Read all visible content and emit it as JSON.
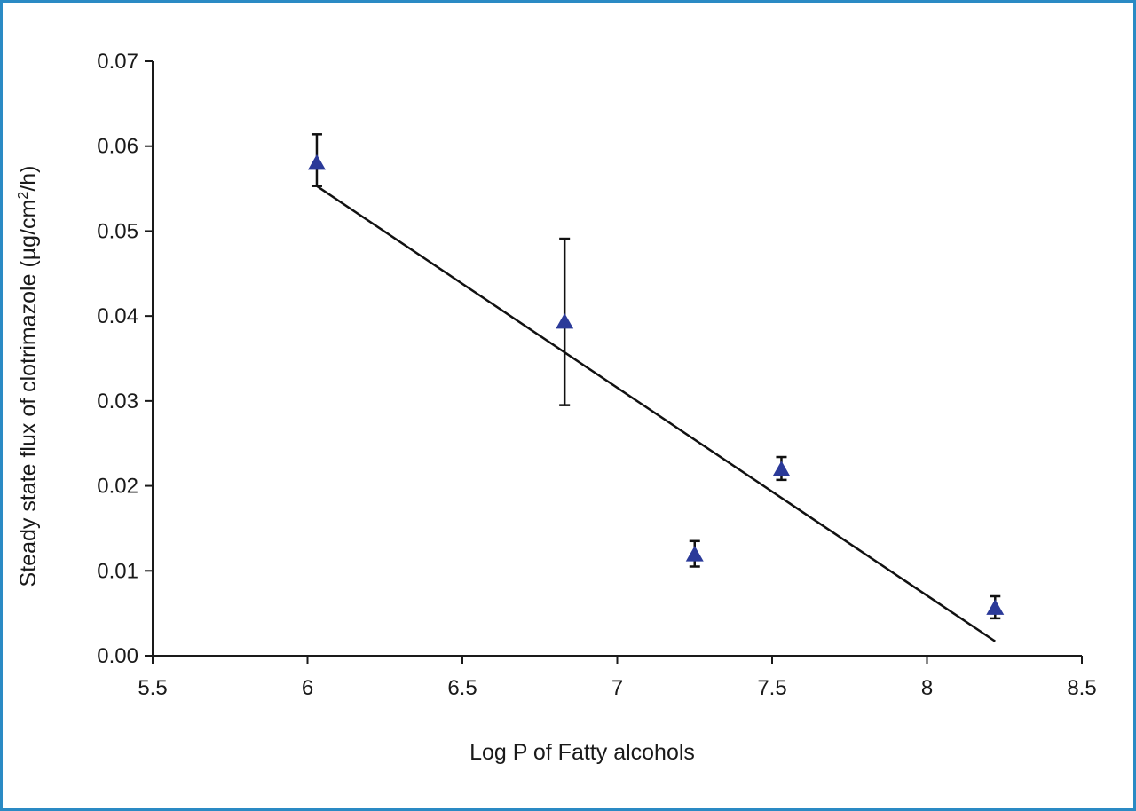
{
  "colors": {
    "frame": "#2a8ac4",
    "marker": "#2b3a99",
    "line": "#111111",
    "axis": "#1a1a1a"
  },
  "chart_data": {
    "type": "scatter",
    "title": "",
    "xlabel": "Log P of Fatty alcohols",
    "ylabel_main": "Steady state flux of clotrimazole (µg/cm",
    "ylabel_sup": "2",
    "ylabel_end": "/h)",
    "xlim": [
      5.5,
      8.5
    ],
    "ylim": [
      0,
      0.07
    ],
    "x_ticks": [
      "5.5",
      "6",
      "6.5",
      "7",
      "7.5",
      "8",
      "8.5"
    ],
    "y_ticks": [
      "0.00",
      "0.01",
      "0.02",
      "0.03",
      "0.04",
      "0.05",
      "0.06",
      "0.07"
    ],
    "grid": false,
    "series": [
      {
        "marker": "triangle",
        "points": [
          {
            "x": 6.03,
            "y": 0.058,
            "err_low": 0.0027,
            "err_high": 0.0034
          },
          {
            "x": 6.83,
            "y": 0.0393,
            "err_low": 0.0098,
            "err_high": 0.0098
          },
          {
            "x": 7.25,
            "y": 0.0119,
            "err_low": 0.0014,
            "err_high": 0.0016
          },
          {
            "x": 7.53,
            "y": 0.0219,
            "err_low": 0.0012,
            "err_high": 0.0015
          },
          {
            "x": 8.22,
            "y": 0.0056,
            "err_low": 0.0012,
            "err_high": 0.0014
          }
        ]
      }
    ],
    "trendline": {
      "x": [
        6.03,
        8.22
      ],
      "y": [
        0.0553,
        0.0017
      ]
    }
  }
}
